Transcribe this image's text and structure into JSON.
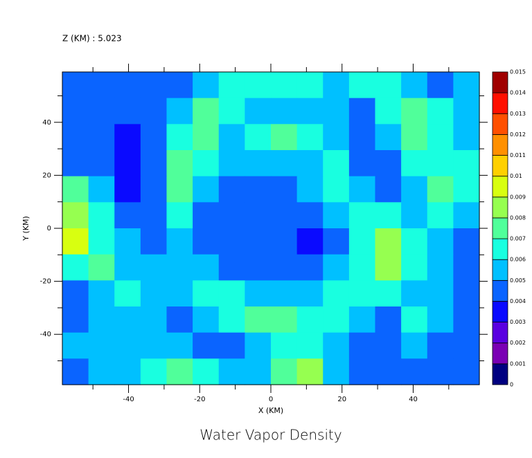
{
  "chart_data": {
    "type": "contour",
    "title": "Water Vapor Density",
    "subtitle": "Z (KM) : 5.023",
    "xlabel": "X (KM)",
    "ylabel": "Y (KM)",
    "xlim": [
      -58.6,
      58.6
    ],
    "ylim": [
      -59,
      59
    ],
    "xticks": [
      -40,
      -20,
      0,
      20,
      40
    ],
    "yticks": [
      -40,
      -20,
      0,
      20,
      40
    ],
    "xticks_minor": [
      -50,
      -30,
      -10,
      10,
      30,
      50
    ],
    "yticks_minor": [
      -50,
      -30,
      -10,
      10,
      30,
      50
    ],
    "levels": [
      0,
      0.001,
      0.002,
      0.003,
      0.004,
      0.005,
      0.006,
      0.007,
      0.008,
      0.009,
      0.01,
      0.011,
      0.012,
      0.013,
      0.014,
      0.015
    ],
    "colors": [
      "#000080",
      "#7a00b4",
      "#5a00e0",
      "#0a0aff",
      "#0a64ff",
      "#00c0ff",
      "#19ffe0",
      "#50ff9a",
      "#96ff50",
      "#d8ff10",
      "#ffd000",
      "#ff9000",
      "#ff5000",
      "#ff1000",
      "#a00000"
    ],
    "z": [
      [
        0.0045,
        0.0045,
        0.0045,
        0.0045,
        0.0045,
        0.0055,
        0.0065,
        0.0065,
        0.0065,
        0.0065,
        0.0055,
        0.0065,
        0.0065,
        0.0055,
        0.0045,
        0.0055
      ],
      [
        0.0045,
        0.0045,
        0.0045,
        0.0045,
        0.0055,
        0.0075,
        0.0065,
        0.0055,
        0.0055,
        0.0055,
        0.0055,
        0.0045,
        0.0065,
        0.0075,
        0.0065,
        0.0055
      ],
      [
        0.0045,
        0.0045,
        0.0035,
        0.0045,
        0.0065,
        0.0075,
        0.0055,
        0.0065,
        0.0075,
        0.0065,
        0.0055,
        0.0045,
        0.0055,
        0.0075,
        0.0065,
        0.0055
      ],
      [
        0.0045,
        0.0045,
        0.0035,
        0.0045,
        0.0075,
        0.0065,
        0.0055,
        0.0055,
        0.0055,
        0.0055,
        0.0065,
        0.0045,
        0.0045,
        0.0065,
        0.0065,
        0.0065
      ],
      [
        0.0075,
        0.0055,
        0.0035,
        0.0045,
        0.0075,
        0.0055,
        0.0045,
        0.0045,
        0.0045,
        0.0055,
        0.0065,
        0.0055,
        0.0045,
        0.0055,
        0.0075,
        0.0065
      ],
      [
        0.0085,
        0.0065,
        0.0045,
        0.0045,
        0.0065,
        0.0045,
        0.0045,
        0.0045,
        0.0045,
        0.0045,
        0.0055,
        0.0065,
        0.0065,
        0.0055,
        0.0065,
        0.0055
      ],
      [
        0.0095,
        0.0065,
        0.0055,
        0.0045,
        0.0055,
        0.0045,
        0.0045,
        0.0045,
        0.0045,
        0.0035,
        0.0045,
        0.0065,
        0.0085,
        0.0065,
        0.0055,
        0.0045
      ],
      [
        0.0065,
        0.0075,
        0.0055,
        0.0055,
        0.0055,
        0.0055,
        0.0045,
        0.0045,
        0.0045,
        0.0045,
        0.0055,
        0.0065,
        0.0085,
        0.0065,
        0.0055,
        0.0045
      ],
      [
        0.0045,
        0.0055,
        0.0065,
        0.0055,
        0.0055,
        0.0065,
        0.0065,
        0.0055,
        0.0055,
        0.0055,
        0.0065,
        0.0065,
        0.0065,
        0.0055,
        0.0055,
        0.0045
      ],
      [
        0.0045,
        0.0055,
        0.0055,
        0.0055,
        0.0045,
        0.0055,
        0.0065,
        0.0075,
        0.0075,
        0.0065,
        0.0065,
        0.0055,
        0.0045,
        0.0065,
        0.0055,
        0.0045
      ],
      [
        0.0055,
        0.0055,
        0.0055,
        0.0055,
        0.0055,
        0.0045,
        0.0045,
        0.0055,
        0.0065,
        0.0065,
        0.0055,
        0.0045,
        0.0045,
        0.0055,
        0.0045,
        0.0045
      ],
      [
        0.0045,
        0.0055,
        0.0055,
        0.0065,
        0.0075,
        0.0065,
        0.0055,
        0.0055,
        0.0075,
        0.0085,
        0.0055,
        0.0045,
        0.0045,
        0.0045,
        0.0045,
        0.0045
      ]
    ]
  }
}
